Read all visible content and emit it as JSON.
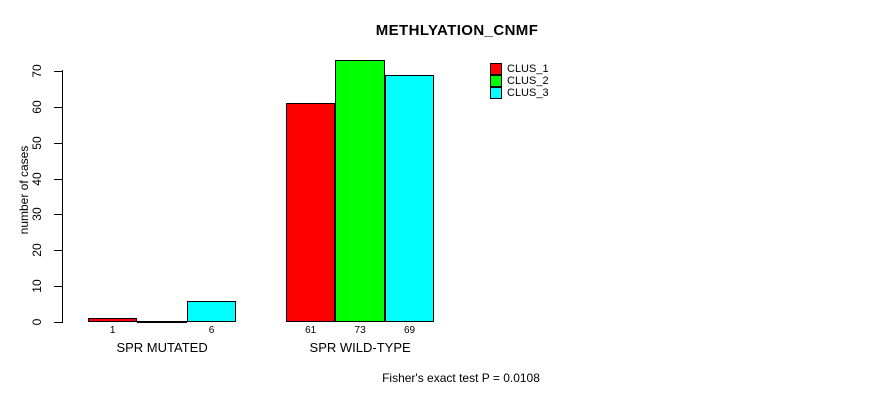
{
  "chart_data": {
    "type": "bar",
    "title": "METHLYATION_CNMF",
    "ylabel": "number of cases",
    "xlabel": "",
    "categories": [
      "SPR MUTATED",
      "SPR WILD-TYPE"
    ],
    "series": [
      {
        "name": "CLUS_1",
        "color": "#ff0000",
        "values": [
          1,
          61
        ]
      },
      {
        "name": "CLUS_2",
        "color": "#00ff00",
        "values": [
          0,
          73
        ]
      },
      {
        "name": "CLUS_3",
        "color": "#00ffff",
        "values": [
          6,
          69
        ]
      }
    ],
    "bar_labels": [
      [
        "1",
        "",
        "6"
      ],
      [
        "61",
        "73",
        "69"
      ]
    ],
    "yticks": [
      0,
      10,
      20,
      30,
      40,
      50,
      60,
      70
    ],
    "ylim": [
      0,
      73
    ],
    "grid": false,
    "legend_position": "top-right",
    "legend_entries": [
      "CLUS_1",
      "CLUS_2",
      "CLUS_3"
    ],
    "annotation": "Fisher's exact test P = 0.0108"
  },
  "colors": {
    "clus_1": "#ff0000",
    "clus_2": "#00ff00",
    "clus_3": "#00ffff",
    "axis": "#000000",
    "background": "#ffffff"
  }
}
